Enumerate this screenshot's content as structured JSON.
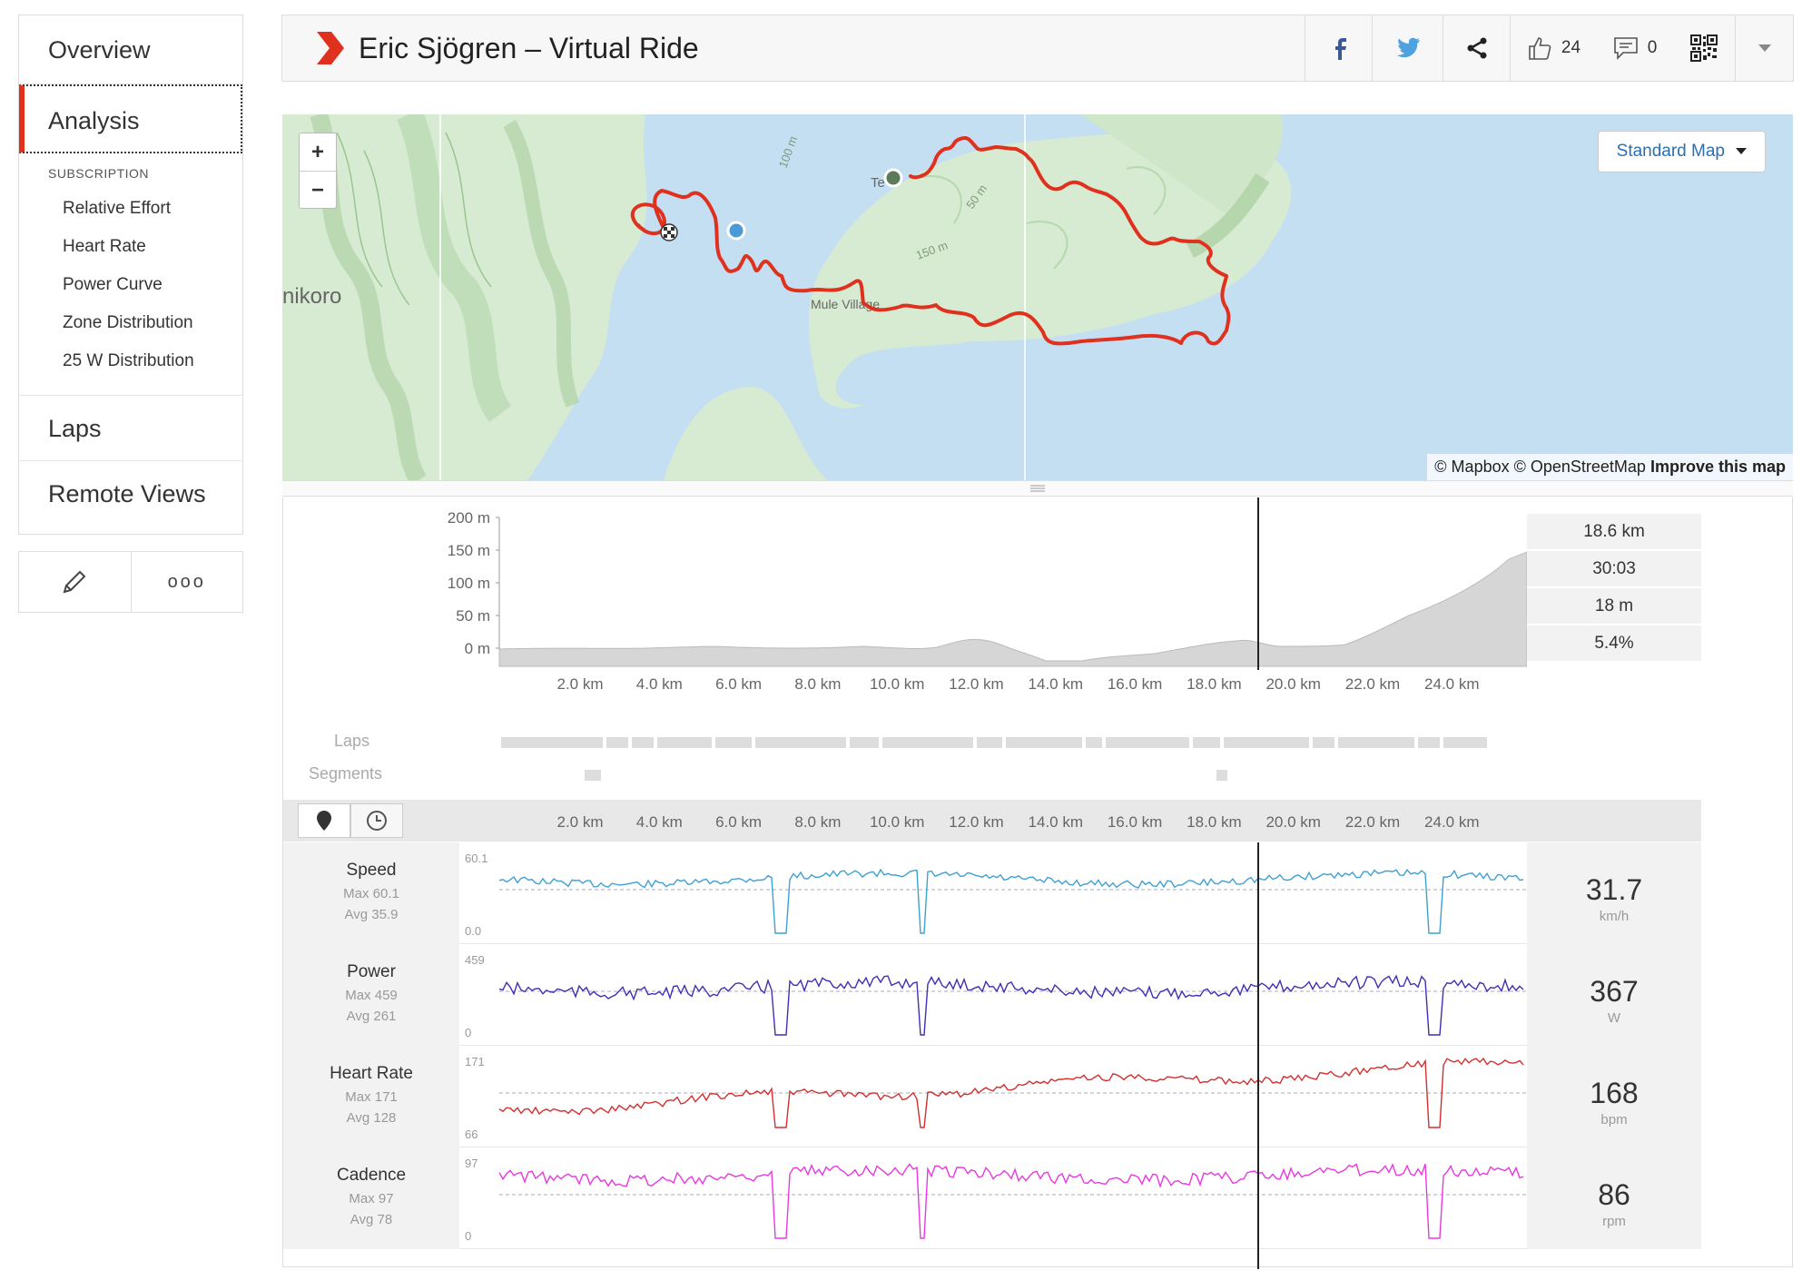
{
  "sidebar": {
    "overview": "Overview",
    "analysis": "Analysis",
    "subscription_title": "SUBSCRIPTION",
    "sub_items": [
      "Relative Effort",
      "Heart Rate",
      "Power Curve",
      "Zone Distribution",
      "25 W Distribution"
    ],
    "laps": "Laps",
    "remote_views": "Remote Views",
    "more": "ooo"
  },
  "header": {
    "title": "Eric Sjögren – Virtual Ride",
    "kudos_count": "24",
    "comments_count": "0"
  },
  "map": {
    "zoom_in": "+",
    "zoom_out": "−",
    "style_select": "Standard Map",
    "attribution": "© Mapbox © OpenStreetMap",
    "improve": "Improve this map",
    "labels": {
      "place1": "nikoro",
      "place2": "Te  u",
      "place3": "Mule Village",
      "contour1": "100 m",
      "contour2": "150 m",
      "contour3": "50 m"
    }
  },
  "elevation": {
    "y_labels": [
      "200 m",
      "150 m",
      "100 m",
      "50 m",
      "0 m"
    ],
    "x_labels": [
      "2.0 km",
      "4.0 km",
      "6.0 km",
      "8.0 km",
      "10.0 km",
      "12.0 km",
      "14.0 km",
      "16.0 km",
      "18.0 km",
      "20.0 km",
      "22.0 km",
      "24.0 km"
    ],
    "stats": [
      "18.6 km",
      "30:03",
      "18 m",
      "5.4%"
    ]
  },
  "rows": {
    "laps": "Laps",
    "segments": "Segments"
  },
  "streams": [
    {
      "name": "Speed",
      "max": "Max 60.1",
      "avg": "Avg 35.9",
      "top": "60.1",
      "bottom": "0.0",
      "value": "31.7",
      "unit": "km/h",
      "color": "#3fa0d2"
    },
    {
      "name": "Power",
      "max": "Max 459",
      "avg": "Avg 261",
      "top": "459",
      "bottom": "0",
      "value": "367",
      "unit": "W",
      "color": "#3f2fb4"
    },
    {
      "name": "Heart Rate",
      "max": "Max 171",
      "avg": "Avg 128",
      "top": "171",
      "bottom": "66",
      "value": "168",
      "unit": "bpm",
      "color": "#d32f2f"
    },
    {
      "name": "Cadence",
      "max": "Max 97",
      "avg": "Avg 78",
      "top": "97",
      "bottom": "0",
      "value": "86",
      "unit": "rpm",
      "color": "#e838e0"
    }
  ],
  "colors": {
    "accent": "#fc4c02",
    "route": "#e0301e",
    "water": "#c5dff2",
    "land": "#d6ead0"
  }
}
